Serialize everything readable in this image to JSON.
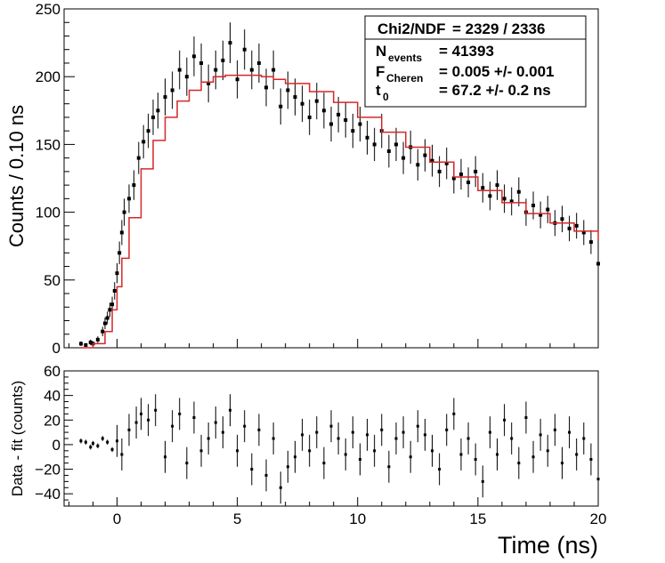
{
  "chart_data": [
    {
      "type": "scatter",
      "panel": "top",
      "title": "",
      "xlabel": "Time (ns)",
      "ylabel": "Counts / 0.10 ns",
      "xlim": [
        -2.2,
        20
      ],
      "ylim": [
        0,
        250
      ],
      "xticks": [
        0,
        5,
        10,
        15,
        20
      ],
      "yticks": [
        0,
        50,
        100,
        150,
        200,
        250
      ],
      "y_tick_labels": [
        "0",
        "50",
        "100",
        "150",
        "200",
        "250"
      ],
      "grid": false,
      "series": [
        {
          "name": "data",
          "style": "black square markers with error bars",
          "x": [
            -1.5,
            -1.3,
            -1.1,
            -1.0,
            -0.8,
            -0.6,
            -0.5,
            -0.4,
            -0.3,
            -0.2,
            -0.1,
            0.0,
            0.1,
            0.2,
            0.3,
            0.5,
            0.7,
            0.9,
            1.1,
            1.3,
            1.5,
            1.7,
            2.0,
            2.3,
            2.6,
            2.9,
            3.2,
            3.5,
            3.8,
            4.1,
            4.4,
            4.7,
            5.0,
            5.3,
            5.6,
            5.9,
            6.2,
            6.5,
            6.8,
            7.1,
            7.4,
            7.7,
            8.0,
            8.3,
            8.6,
            8.9,
            9.2,
            9.5,
            9.8,
            10.1,
            10.4,
            10.7,
            11.0,
            11.3,
            11.6,
            11.9,
            12.2,
            12.5,
            12.8,
            13.1,
            13.4,
            13.7,
            14.0,
            14.3,
            14.6,
            14.9,
            15.2,
            15.5,
            15.8,
            16.1,
            16.4,
            16.7,
            17.0,
            17.3,
            17.6,
            17.9,
            18.2,
            18.5,
            18.8,
            19.1,
            19.4,
            19.7,
            20.0
          ],
          "y": [
            3,
            2,
            4,
            3,
            6,
            12,
            18,
            22,
            28,
            32,
            42,
            55,
            70,
            85,
            100,
            110,
            120,
            140,
            152,
            160,
            170,
            175,
            185,
            190,
            205,
            200,
            215,
            210,
            195,
            205,
            212,
            225,
            198,
            220,
            205,
            210,
            192,
            205,
            178,
            190,
            185,
            180,
            170,
            182,
            175,
            165,
            172,
            168,
            160,
            165,
            155,
            150,
            160,
            145,
            150,
            140,
            148,
            135,
            142,
            138,
            130,
            136,
            125,
            128,
            122,
            130,
            118,
            112,
            120,
            110,
            108,
            115,
            100,
            105,
            98,
            102,
            92,
            95,
            88,
            90,
            85,
            78,
            62
          ]
        },
        {
          "name": "fit",
          "style": "red step line",
          "x": [
            -1.5,
            -1.0,
            -0.5,
            -0.2,
            0.0,
            0.2,
            0.5,
            1.0,
            1.5,
            2.0,
            2.5,
            3.0,
            3.5,
            4.0,
            4.5,
            5.0,
            5.5,
            6.0,
            6.5,
            7.0,
            8.0,
            9.0,
            10.0,
            11.0,
            12.0,
            13.0,
            14.0,
            15.0,
            16.0,
            17.0,
            18.0,
            19.0,
            20.0
          ],
          "y": [
            0,
            3,
            12,
            28,
            45,
            66,
            96,
            132,
            153,
            170,
            182,
            190,
            196,
            200,
            201,
            201,
            201,
            200,
            198,
            195,
            189,
            181,
            170,
            159,
            148,
            137,
            126,
            116,
            107,
            99,
            92,
            86,
            80
          ]
        }
      ],
      "legend": {
        "position": "top-right",
        "rows": [
          {
            "label": "Chi2/NDF",
            "value": "= 2329 / 2336"
          },
          {
            "label": "N",
            "sub": "events",
            "value": "= 41393"
          },
          {
            "label": "F",
            "sub": "Cheren",
            "value": "= 0.005 +/- 0.001"
          },
          {
            "label": "t",
            "sub": "0",
            "value": "= 67.2 +/- 0.2 ns"
          }
        ]
      }
    },
    {
      "type": "scatter",
      "panel": "bottom",
      "title": "",
      "xlabel": "Time (ns)",
      "ylabel": "Data - fit (counts)",
      "xlim": [
        -2.2,
        20
      ],
      "ylim": [
        -50,
        60
      ],
      "xticks": [
        0,
        5,
        10,
        15,
        20
      ],
      "x_tick_labels": [
        "0",
        "5",
        "10",
        "15",
        "20"
      ],
      "yticks": [
        -40,
        -20,
        0,
        20,
        40,
        60
      ],
      "y_tick_labels": [
        "−40",
        "−20",
        "0",
        "20",
        "40",
        "60"
      ],
      "grid": false,
      "series": [
        {
          "name": "residuals",
          "style": "small black markers with error bars",
          "x": [
            -1.5,
            -1.3,
            -1.1,
            -1.0,
            -0.8,
            -0.6,
            -0.4,
            -0.2,
            0.0,
            0.2,
            0.5,
            0.8,
            1.0,
            1.3,
            1.6,
            2.0,
            2.3,
            2.6,
            2.9,
            3.2,
            3.5,
            3.8,
            4.1,
            4.4,
            4.7,
            5.0,
            5.3,
            5.6,
            5.9,
            6.2,
            6.5,
            6.8,
            7.1,
            7.4,
            7.7,
            8.0,
            8.3,
            8.6,
            8.9,
            9.2,
            9.5,
            9.8,
            10.1,
            10.4,
            10.7,
            11.0,
            11.3,
            11.6,
            11.9,
            12.2,
            12.5,
            12.8,
            13.1,
            13.4,
            13.7,
            14.0,
            14.3,
            14.6,
            14.9,
            15.2,
            15.5,
            15.8,
            16.1,
            16.4,
            16.7,
            17.0,
            17.3,
            17.6,
            17.9,
            18.2,
            18.5,
            18.8,
            19.1,
            19.4,
            19.7,
            20.0
          ],
          "y": [
            3,
            2,
            -2,
            1,
            -1,
            5,
            2,
            -4,
            3,
            -8,
            12,
            18,
            25,
            20,
            28,
            -10,
            15,
            25,
            -15,
            22,
            -5,
            5,
            18,
            10,
            28,
            -5,
            15,
            -20,
            12,
            -25,
            5,
            -35,
            -18,
            -10,
            8,
            -5,
            10,
            -15,
            15,
            5,
            -8,
            10,
            -12,
            8,
            -5,
            12,
            -18,
            5,
            10,
            -10,
            15,
            8,
            -5,
            -20,
            12,
            25,
            -8,
            5,
            -12,
            -30,
            10,
            -8,
            20,
            5,
            -15,
            22,
            -10,
            8,
            -5,
            12,
            -15,
            10,
            -8,
            5,
            -12,
            -28
          ]
        }
      ]
    }
  ]
}
